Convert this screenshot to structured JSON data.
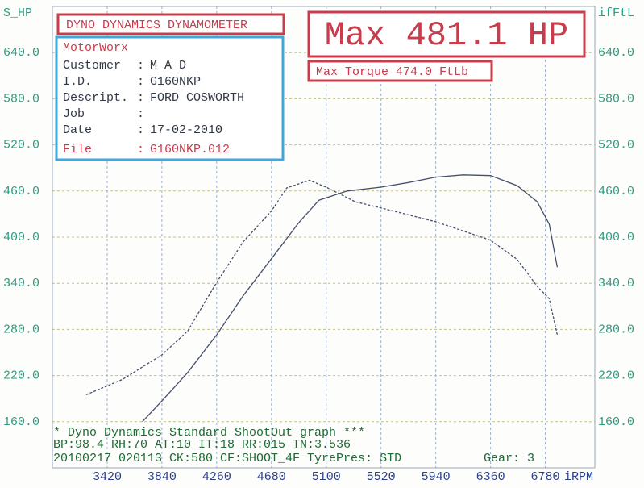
{
  "chart_data": {
    "type": "line",
    "header": "DYNO DYNAMICS DYNAMOMETER",
    "company": "MotorWorx",
    "info": [
      {
        "label": "Customer",
        "value": "M A D"
      },
      {
        "label": "I.D.",
        "value": "G160NKP"
      },
      {
        "label": "Descript.",
        "value": "FORD COSWORTH"
      },
      {
        "label": "Job"
      },
      {
        "label": "Date",
        "value": "17-02-2010"
      },
      {
        "label": "File",
        "value": "G160NKP.012"
      }
    ],
    "max_power": "Max 481.1 HP",
    "max_torque": "Max Torque 474.0 FtLb",
    "footer": [
      "* Dyno Dynamics Standard ShootOut graph ***",
      "BP:98.4  RH:70 AT:10 IT:18  RR:015 TN:3.536",
      "20100217 020113 CK:580 CF:SHOOT_4F TyrePres: STD"
    ],
    "gear": "Gear: 3",
    "xlabel": "iRPM",
    "ylabel": "S_HP",
    "y2label": "ifFtL",
    "xlim": [
      3000,
      7160
    ],
    "xticks": [
      3420,
      3840,
      4260,
      4680,
      5100,
      5520,
      5940,
      6360,
      6780
    ],
    "ylim": [
      100,
      700
    ],
    "yticks": [
      {
        "value": 160,
        "label": "160.0"
      },
      {
        "value": 220,
        "label": "220.0"
      },
      {
        "value": 280,
        "label": "280.0"
      },
      {
        "value": 340,
        "label": "340.0"
      },
      {
        "value": 400,
        "label": "400.0"
      },
      {
        "value": 460,
        "label": "460.0"
      },
      {
        "value": 520,
        "label": "520.0"
      },
      {
        "value": 580,
        "label": "580.0"
      },
      {
        "value": 640,
        "label": "640.0"
      }
    ],
    "y2lim": [
      100,
      700
    ],
    "y2ticks": [
      {
        "value": 160,
        "label": "160.0"
      },
      {
        "value": 220,
        "label": "220.0"
      },
      {
        "value": 280,
        "label": "280.0"
      },
      {
        "value": 340,
        "label": "340.0"
      },
      {
        "value": 400,
        "label": "400.0"
      },
      {
        "value": 460,
        "label": "460.0"
      },
      {
        "value": 520,
        "label": "520.0"
      },
      {
        "value": 580,
        "label": "580.0"
      },
      {
        "value": 640,
        "label": "640.0"
      }
    ],
    "grid": true,
    "series": [
      {
        "color": "#44506c",
        "style": "solid",
        "x": [
          3690,
          3840,
          4038,
          4260,
          4464,
          4680,
          4890,
          5044,
          5260,
          5520,
          5730,
          5940,
          6150,
          6360,
          6564,
          6718,
          6810,
          6872
        ],
        "values": [
          160,
          187,
          224,
          273,
          324,
          372,
          419,
          448,
          460,
          465,
          471,
          478,
          481,
          480,
          467,
          446,
          417,
          361
        ]
      },
      {
        "color": "#44506c",
        "style": "dashed",
        "axis": "y2",
        "x": [
          3259,
          3537,
          3840,
          4038,
          4260,
          4464,
          4680,
          4797,
          4970,
          5100,
          5322,
          5520,
          5940,
          6360,
          6564,
          6718,
          6810,
          6872
        ],
        "values": [
          195,
          215,
          247,
          278,
          341,
          394,
          434,
          464,
          474,
          465,
          446,
          438,
          420,
          396,
          371,
          336,
          320,
          273
        ]
      }
    ]
  }
}
